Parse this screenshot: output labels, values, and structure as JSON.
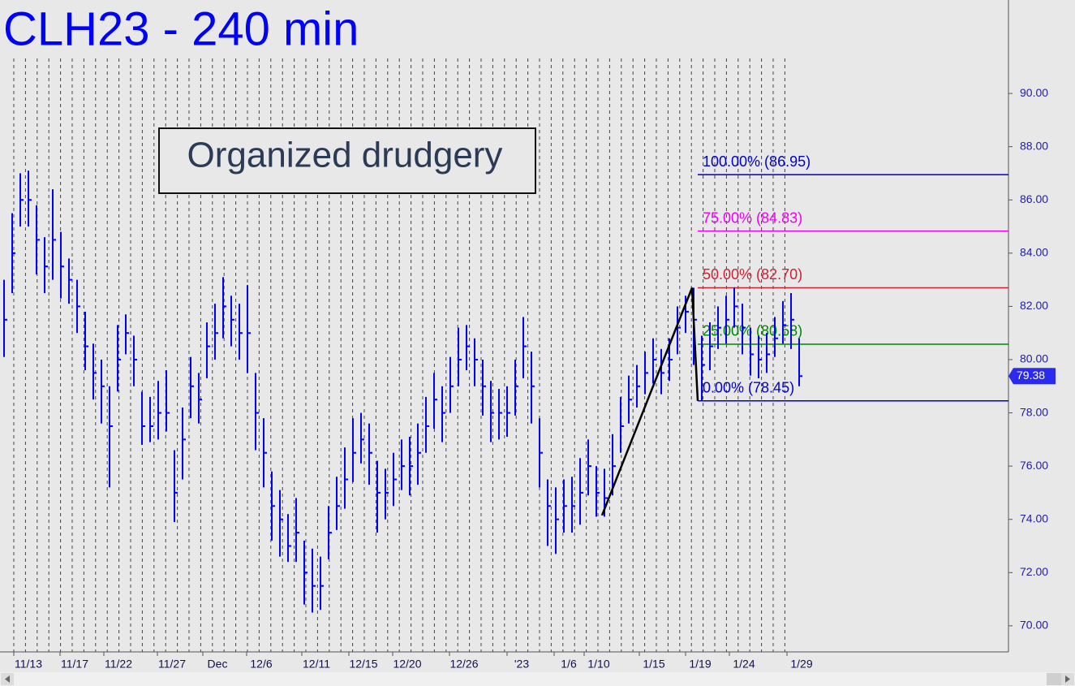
{
  "chart_data": {
    "type": "ohlc",
    "title": "CLH23 - 240 min",
    "annotation": "Organized drudgery",
    "color": "#0000ff",
    "x_labels": [
      "11/13",
      "11/17",
      "11/22",
      "11/27",
      "Dec",
      "12/6",
      "12/11",
      "12/15",
      "12/20",
      "12/26",
      "'23",
      "1/6",
      "1/10",
      "1/15",
      "1/19",
      "1/24",
      "1/29"
    ],
    "high": [
      83.0,
      85.5,
      87.0,
      87.1,
      85.8,
      84.6,
      86.4,
      84.8,
      83.8,
      83.0,
      81.8,
      80.6,
      80.0,
      79.0,
      81.3,
      81.7,
      80.9,
      78.8,
      78.6,
      79.2,
      79.6,
      76.6,
      78.2,
      80.1,
      79.5,
      81.4,
      82.1,
      83.1,
      82.4,
      82.1,
      82.8,
      79.5,
      77.8,
      75.8,
      75.1,
      74.2,
      74.8,
      73.2,
      72.9,
      72.6,
      74.5,
      75.6,
      76.7,
      77.8,
      78.0,
      77.6,
      76.2,
      75.9,
      76.5,
      77.0,
      77.1,
      77.6,
      78.6,
      79.5,
      79.0,
      80.1,
      81.2,
      81.3,
      80.8,
      80.0,
      79.2,
      78.9,
      79.0,
      80.0,
      81.6,
      80.3,
      77.8,
      75.5,
      75.2,
      75.5,
      75.6,
      76.3,
      77.0,
      76.0,
      75.9,
      77.2,
      78.6,
      79.4,
      79.8,
      80.3,
      80.8,
      80.4,
      80.8,
      82.0,
      82.4,
      82.7,
      80.9,
      81.4,
      82.0,
      82.4,
      82.7,
      82.1,
      81.2,
      80.9,
      81.0,
      81.6,
      82.2,
      82.5,
      80.8
    ],
    "low": [
      80.1,
      82.5,
      85.0,
      85.0,
      83.2,
      82.5,
      83.0,
      82.3,
      82.1,
      81.0,
      79.6,
      78.5,
      77.6,
      75.2,
      78.8,
      80.2,
      79.0,
      76.8,
      76.9,
      77.0,
      77.3,
      73.9,
      75.5,
      77.8,
      77.6,
      79.3,
      80.0,
      80.8,
      80.5,
      80.0,
      79.5,
      76.6,
      75.2,
      73.2,
      72.6,
      72.4,
      72.4,
      70.8,
      70.5,
      70.6,
      72.5,
      73.6,
      74.4,
      75.4,
      76.1,
      75.3,
      73.5,
      74.0,
      74.5,
      75.1,
      74.9,
      75.3,
      76.5,
      77.4,
      76.9,
      78.0,
      79.0,
      79.6,
      79.0,
      77.9,
      76.9,
      77.0,
      77.1,
      77.9,
      79.3,
      77.6,
      75.2,
      73.0,
      72.7,
      73.5,
      73.5,
      73.8,
      74.9,
      74.1,
      74.1,
      74.9,
      76.5,
      77.6,
      78.2,
      78.7,
      79.1,
      78.7,
      79.2,
      80.2,
      81.0,
      79.8,
      78.45,
      79.6,
      80.4,
      80.6,
      81.2,
      80.2,
      79.4,
      79.3,
      79.5,
      80.1,
      80.6,
      80.4,
      79.0
    ],
    "close": [
      81.5,
      84,
      86,
      86,
      84.5,
      83.5,
      84.5,
      83.5,
      83,
      82,
      80.5,
      79.5,
      79,
      77.5,
      80,
      81,
      80,
      77.5,
      77.5,
      78,
      78,
      75,
      77,
      79,
      78.5,
      80.5,
      81,
      82,
      81.5,
      81,
      81,
      78,
      76.5,
      74.5,
      74,
      73,
      73.5,
      72,
      71.5,
      71.5,
      73.5,
      74.5,
      75.5,
      76.5,
      77,
      76.5,
      75,
      75,
      75.5,
      76,
      76,
      76.5,
      77.5,
      78.5,
      78,
      79,
      80,
      80.5,
      80,
      79,
      78,
      78,
      78,
      79,
      80.5,
      79,
      76.5,
      74.5,
      74,
      74.5,
      74.5,
      75,
      76,
      75,
      74.8,
      76,
      77.5,
      78.5,
      79,
      79.5,
      80,
      79.5,
      80,
      81.2,
      81.8,
      81.5,
      79.8,
      80.5,
      81.2,
      81.5,
      82,
      81.2,
      80.2,
      80,
      80.2,
      80.8,
      81.3,
      81.5,
      79.38
    ],
    "last_price": 79.38,
    "levels": [
      {
        "label": "100.00% (86.95)",
        "value": 86.95,
        "color": "#0000cc"
      },
      {
        "label": "75.00% (84.83)",
        "value": 84.83,
        "color": "#ee00ee"
      },
      {
        "label": "50.00% (82.70)",
        "value": 82.7,
        "color": "#cc2233"
      },
      {
        "label": "25.00% (80.58)",
        "value": 80.58,
        "color": "#008800"
      },
      {
        "label": "0.00% (78.45)",
        "value": 78.45,
        "color": "#0000cc"
      }
    ],
    "swing_line": {
      "values": [
        74.15,
        82.7,
        78.45
      ],
      "color": "#000000"
    },
    "ylim": [
      69.02,
      93.51
    ],
    "yticks": [
      {
        "value": 70,
        "label": "70.00"
      },
      {
        "value": 72,
        "label": "72.00"
      },
      {
        "value": 74,
        "label": "74.00"
      },
      {
        "value": 76,
        "label": "76.00"
      },
      {
        "value": 78,
        "label": "78.00"
      },
      {
        "value": 80,
        "label": "80.00"
      },
      {
        "value": 82,
        "label": "82.00"
      },
      {
        "value": 84,
        "label": "84.00"
      },
      {
        "value": 86,
        "label": "86.00"
      },
      {
        "value": 88,
        "label": "88.00"
      },
      {
        "value": 90,
        "label": "90.00"
      }
    ]
  }
}
